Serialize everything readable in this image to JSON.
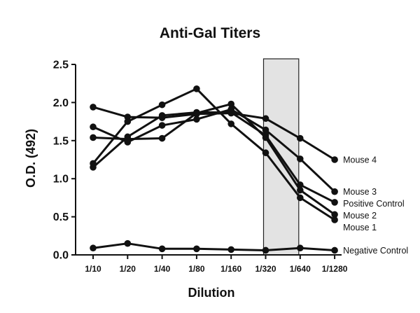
{
  "chart_data": {
    "type": "line",
    "title": "Anti-Gal Titers",
    "xlabel": "Dilution",
    "ylabel": "O.D. (492)",
    "categories": [
      "1/10",
      "1/20",
      "1/40",
      "1/80",
      "1/160",
      "1/320",
      "1/640",
      "1/1280"
    ],
    "yticks": [
      "0.0",
      "0.5",
      "1.0",
      "1.5",
      "2.0",
      "2.5"
    ],
    "ylim": [
      0,
      2.5
    ],
    "grid": false,
    "highlight_band": {
      "from": "1/320",
      "to": "1/640"
    },
    "series": [
      {
        "name": "Mouse 4",
        "values": [
          1.94,
          1.81,
          1.8,
          1.85,
          1.86,
          1.79,
          1.53,
          1.25
        ]
      },
      {
        "name": "Mouse 3",
        "values": [
          1.68,
          1.48,
          1.7,
          1.78,
          1.91,
          1.64,
          1.26,
          0.83
        ]
      },
      {
        "name": "Positive Control",
        "values": [
          1.15,
          1.55,
          1.83,
          1.87,
          1.87,
          1.57,
          0.92,
          0.69
        ]
      },
      {
        "name": "Mouse 2",
        "values": [
          1.54,
          1.52,
          1.53,
          1.86,
          1.98,
          1.54,
          0.85,
          0.53
        ]
      },
      {
        "name": "Mouse 1",
        "values": [
          1.2,
          1.75,
          1.97,
          2.18,
          1.72,
          1.34,
          0.75,
          0.46
        ]
      },
      {
        "name": "Negative Control",
        "values": [
          0.09,
          0.15,
          0.08,
          0.08,
          0.07,
          0.06,
          0.09,
          0.06
        ]
      }
    ],
    "colors": {
      "line": "#111111",
      "band_fill": "#e3e3e3",
      "band_stroke": "#222222"
    }
  }
}
